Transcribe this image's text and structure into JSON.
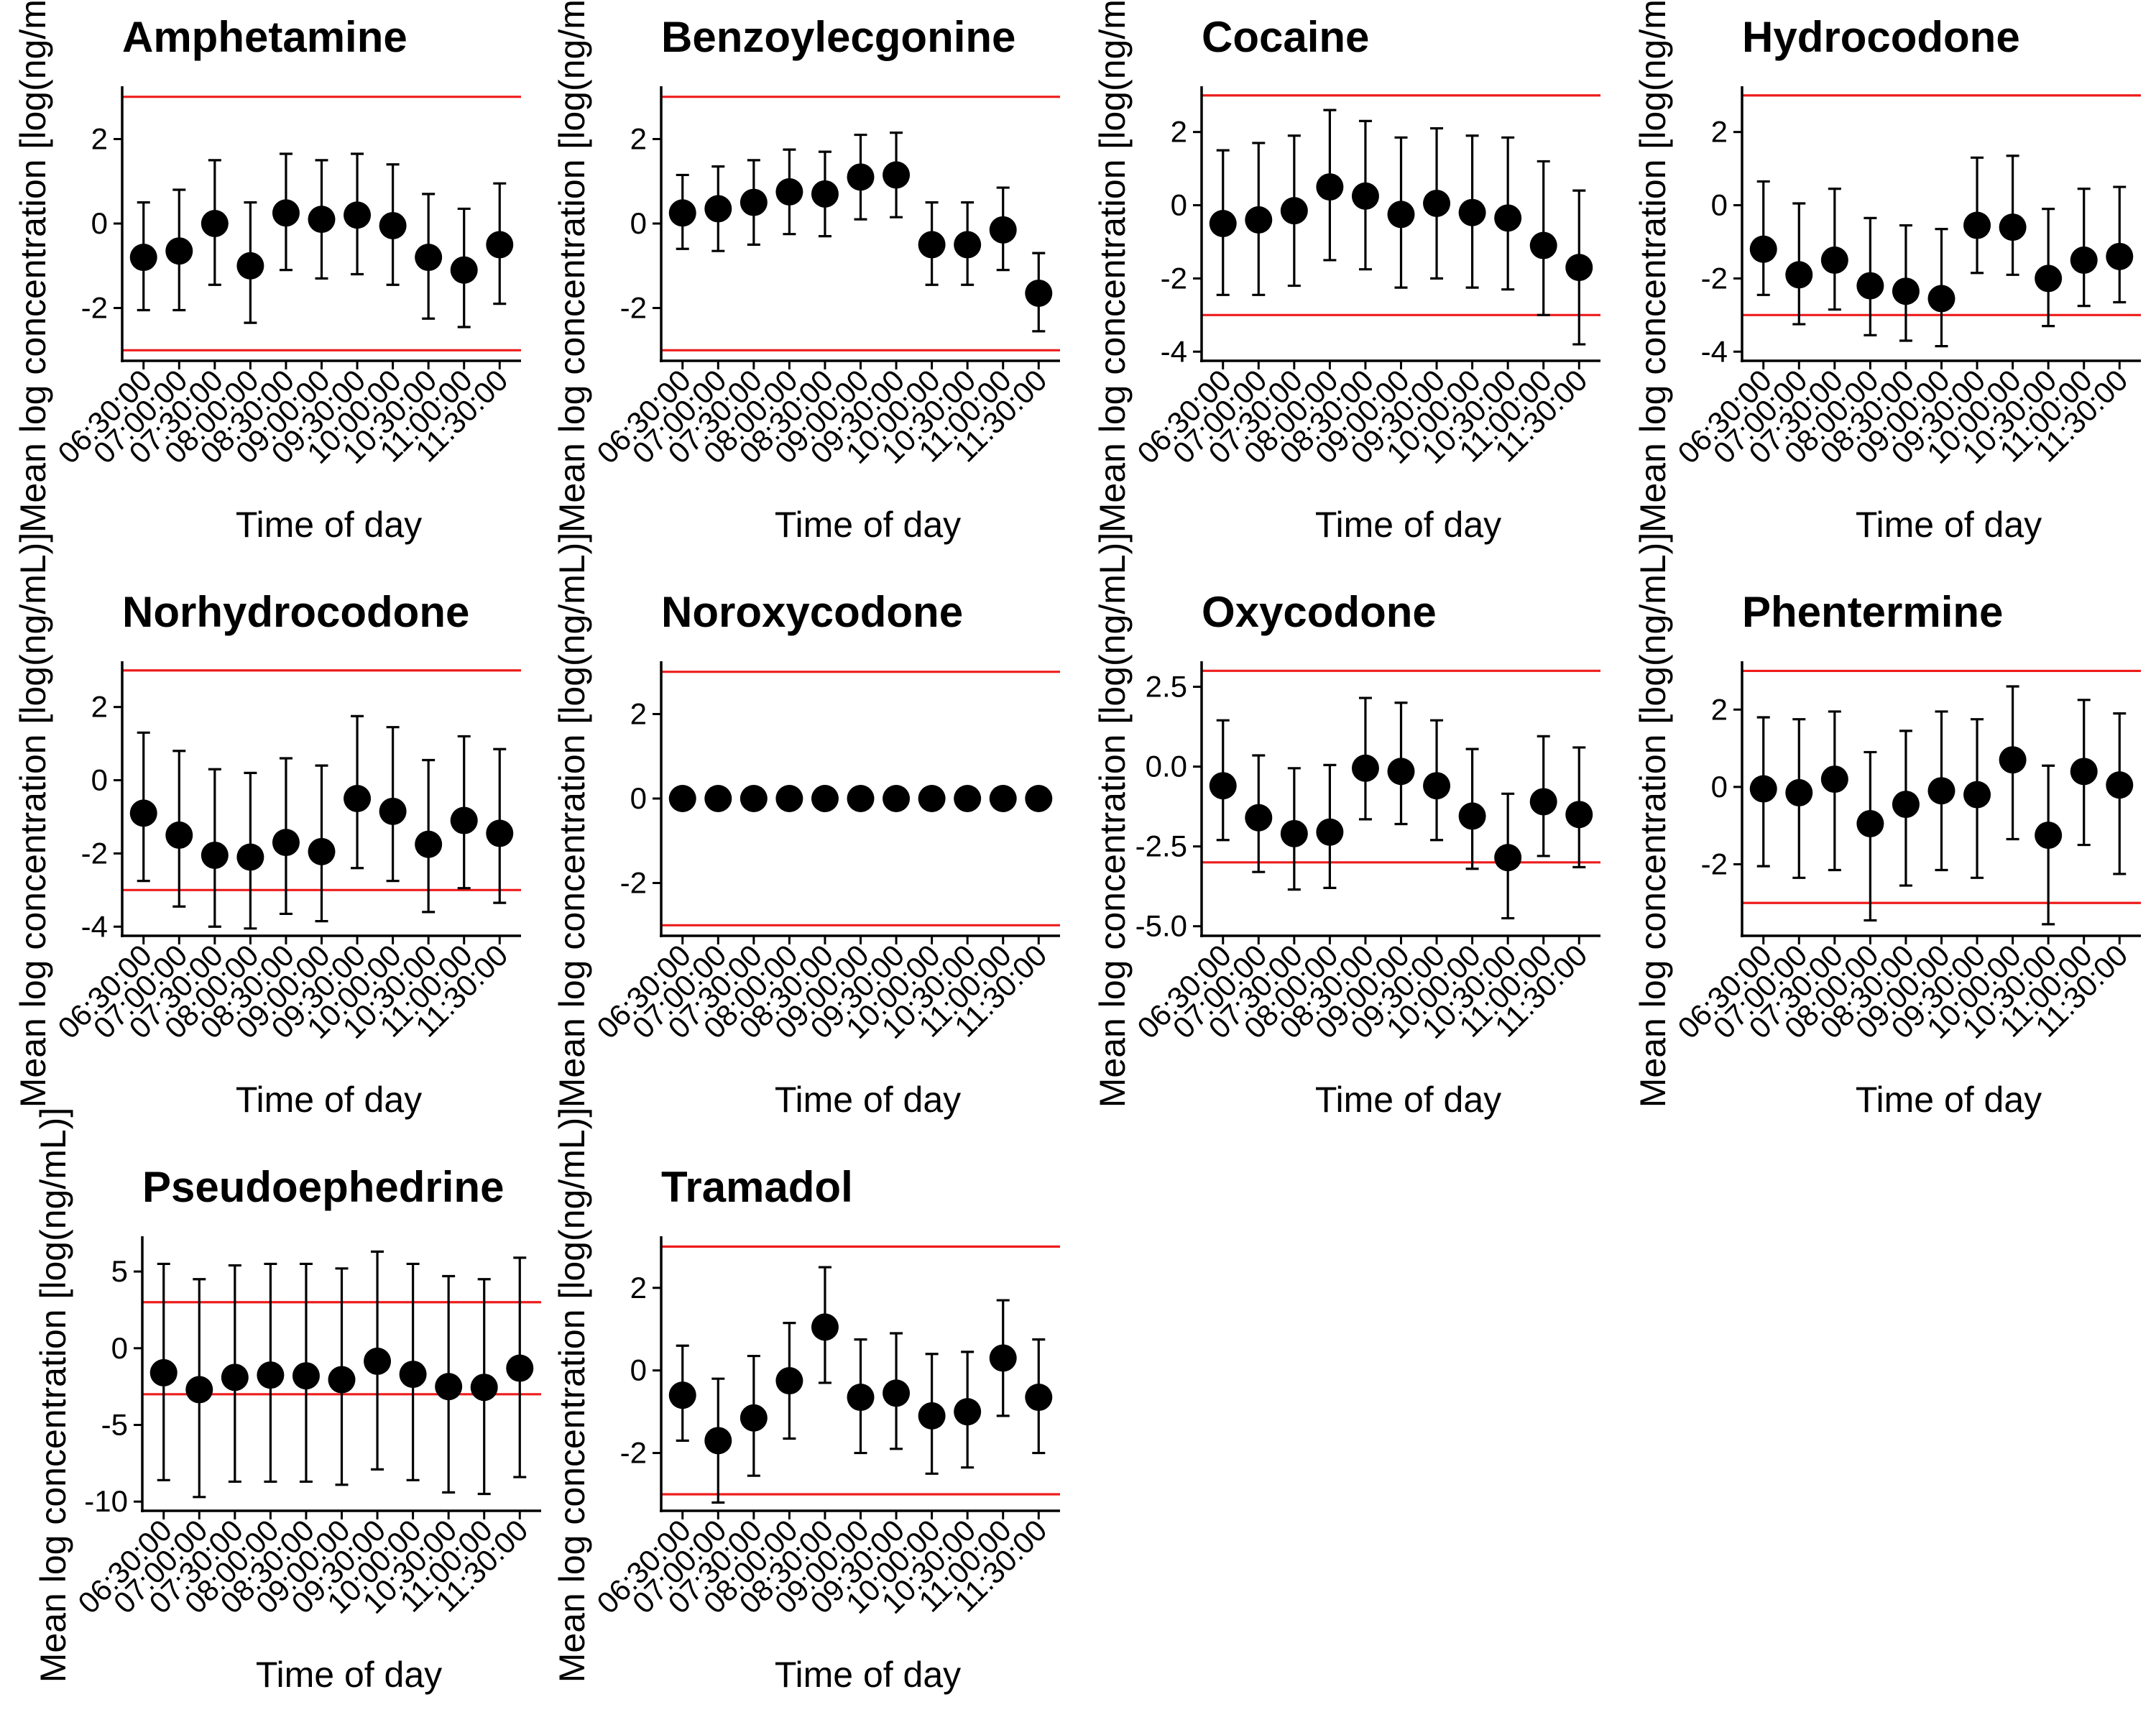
{
  "figure": {
    "reference_line_color": "#ee1c1c",
    "point_color": "#000000"
  },
  "chart_data": [
    {
      "type": "scatter",
      "title": "Amphetamine",
      "xlabel": "Time of day",
      "ylabel": "Mean log concentration [log(ng/mL)]",
      "categories": [
        "06:30:00",
        "07:00:00",
        "07:30:00",
        "08:00:00",
        "08:30:00",
        "09:00:00",
        "09:30:00",
        "10:00:00",
        "10:30:00",
        "11:00:00",
        "11:30:00"
      ],
      "values": [
        -0.8,
        -0.65,
        0.0,
        -1.0,
        0.25,
        0.1,
        0.2,
        -0.05,
        -0.8,
        -1.1,
        -0.5
      ],
      "error_low": [
        -2.05,
        -2.05,
        -1.45,
        -2.35,
        -1.1,
        -1.3,
        -1.2,
        -1.45,
        -2.25,
        -2.45,
        -1.9
      ],
      "error_high": [
        0.5,
        0.8,
        1.5,
        0.5,
        1.65,
        1.5,
        1.65,
        1.4,
        0.7,
        0.35,
        0.95
      ],
      "reference_lines": [
        3,
        -3
      ],
      "ylim": [
        -3.25,
        3.25
      ],
      "yticks": [
        -2,
        0,
        2
      ],
      "ytick_labels": [
        "-2",
        "0",
        "2"
      ]
    },
    {
      "type": "scatter",
      "title": "Benzoylecgonine",
      "xlabel": "Time of day",
      "ylabel": "Mean log concentration [log(ng/mL)]",
      "categories": [
        "06:30:00",
        "07:00:00",
        "07:30:00",
        "08:00:00",
        "08:30:00",
        "09:00:00",
        "09:30:00",
        "10:00:00",
        "10:30:00",
        "11:00:00",
        "11:30:00"
      ],
      "values": [
        0.25,
        0.35,
        0.5,
        0.75,
        0.7,
        1.1,
        1.15,
        -0.5,
        -0.5,
        -0.15,
        -1.65
      ],
      "error_low": [
        -0.6,
        -0.65,
        -0.5,
        -0.25,
        -0.3,
        0.1,
        0.15,
        -1.45,
        -1.45,
        -1.1,
        -2.55
      ],
      "error_high": [
        1.15,
        1.35,
        1.5,
        1.75,
        1.7,
        2.1,
        2.15,
        0.5,
        0.5,
        0.85,
        -0.7
      ],
      "reference_lines": [
        3,
        -3
      ],
      "ylim": [
        -3.25,
        3.25
      ],
      "yticks": [
        -2,
        0,
        2
      ],
      "ytick_labels": [
        "-2",
        "0",
        "2"
      ]
    },
    {
      "type": "scatter",
      "title": "Cocaine",
      "xlabel": "Time of day",
      "ylabel": "Mean log concentration [log(ng/mL)]",
      "categories": [
        "06:30:00",
        "07:00:00",
        "07:30:00",
        "08:00:00",
        "08:30:00",
        "09:00:00",
        "09:30:00",
        "10:00:00",
        "10:30:00",
        "11:00:00",
        "11:30:00"
      ],
      "values": [
        -0.5,
        -0.4,
        -0.15,
        0.5,
        0.25,
        -0.25,
        0.05,
        -0.2,
        -0.35,
        -1.1,
        -1.7
      ],
      "error_low": [
        -2.45,
        -2.45,
        -2.2,
        -1.5,
        -1.75,
        -2.25,
        -2.0,
        -2.25,
        -2.3,
        -3.0,
        -3.8
      ],
      "error_high": [
        1.5,
        1.7,
        1.9,
        2.6,
        2.3,
        1.85,
        2.1,
        1.9,
        1.85,
        1.2,
        0.4
      ],
      "reference_lines": [
        3,
        -3
      ],
      "ylim": [
        -4.25,
        3.25
      ],
      "yticks": [
        -4,
        -2,
        0,
        2
      ],
      "ytick_labels": [
        "-4",
        "-2",
        "0",
        "2"
      ]
    },
    {
      "type": "scatter",
      "title": "Hydrocodone",
      "xlabel": "Time of day",
      "ylabel": "Mean log concentration [log(ng/mL)]",
      "categories": [
        "06:30:00",
        "07:00:00",
        "07:30:00",
        "08:00:00",
        "08:30:00",
        "09:00:00",
        "09:30:00",
        "10:00:00",
        "10:30:00",
        "11:00:00",
        "11:30:00"
      ],
      "values": [
        -1.2,
        -1.9,
        -1.5,
        -2.2,
        -2.35,
        -2.55,
        -0.55,
        -0.6,
        -2.0,
        -1.5,
        -1.4
      ],
      "error_low": [
        -2.45,
        -3.25,
        -2.85,
        -3.55,
        -3.7,
        -3.85,
        -1.85,
        -1.9,
        -3.3,
        -2.75,
        -2.65
      ],
      "error_high": [
        0.65,
        0.05,
        0.45,
        -0.35,
        -0.55,
        -0.65,
        1.3,
        1.35,
        -0.1,
        0.45,
        0.5
      ],
      "reference_lines": [
        3,
        -3
      ],
      "ylim": [
        -4.25,
        3.25
      ],
      "yticks": [
        -4,
        -2,
        0,
        2
      ],
      "ytick_labels": [
        "-4",
        "-2",
        "0",
        "2"
      ]
    },
    {
      "type": "scatter",
      "title": "Norhydrocodone",
      "xlabel": "Time of day",
      "ylabel": "Mean log concentration [log(ng/mL)]",
      "categories": [
        "06:30:00",
        "07:00:00",
        "07:30:00",
        "08:00:00",
        "08:30:00",
        "09:00:00",
        "09:30:00",
        "10:00:00",
        "10:30:00",
        "11:00:00",
        "11:30:00"
      ],
      "values": [
        -0.9,
        -1.5,
        -2.05,
        -2.1,
        -1.7,
        -1.95,
        -0.5,
        -0.85,
        -1.75,
        -1.1,
        -1.45
      ],
      "error_low": [
        -2.75,
        -3.45,
        -4.0,
        -4.05,
        -3.65,
        -3.85,
        -2.4,
        -2.75,
        -3.6,
        -2.95,
        -3.35
      ],
      "error_high": [
        1.3,
        0.8,
        0.3,
        0.2,
        0.6,
        0.4,
        1.75,
        1.45,
        0.55,
        1.2,
        0.85
      ],
      "reference_lines": [
        3,
        -3
      ],
      "ylim": [
        -4.25,
        3.25
      ],
      "yticks": [
        -4,
        -2,
        0,
        2
      ],
      "ytick_labels": [
        "-4",
        "-2",
        "0",
        "2"
      ]
    },
    {
      "type": "scatter",
      "title": "Noroxycodone",
      "xlabel": "Time of day",
      "ylabel": "Mean log concentration [log(ng/mL)]",
      "categories": [
        "06:30:00",
        "07:00:00",
        "07:30:00",
        "08:00:00",
        "08:30:00",
        "09:00:00",
        "09:30:00",
        "10:00:00",
        "10:30:00",
        "11:00:00",
        "11:30:00"
      ],
      "values": [
        0,
        0,
        0,
        0,
        0,
        0,
        0,
        0,
        0,
        0,
        0
      ],
      "error_low": [
        0,
        0,
        0,
        0,
        0,
        0,
        0,
        0,
        0,
        0,
        0
      ],
      "error_high": [
        0,
        0,
        0,
        0,
        0,
        0,
        0,
        0,
        0,
        0,
        0
      ],
      "reference_lines": [
        3,
        -3
      ],
      "ylim": [
        -3.25,
        3.25
      ],
      "yticks": [
        -2,
        0,
        2
      ],
      "ytick_labels": [
        "-2",
        "0",
        "2"
      ]
    },
    {
      "type": "scatter",
      "title": "Oxycodone",
      "xlabel": "Time of day",
      "ylabel": "Mean log concentration [log(ng/mL)]",
      "categories": [
        "06:30:00",
        "07:00:00",
        "07:30:00",
        "08:00:00",
        "08:30:00",
        "09:00:00",
        "09:30:00",
        "10:00:00",
        "10:30:00",
        "11:00:00",
        "11:30:00"
      ],
      "values": [
        -0.6,
        -1.6,
        -2.1,
        -2.05,
        -0.05,
        -0.15,
        -0.6,
        -1.55,
        -2.85,
        -1.1,
        -1.5
      ],
      "error_low": [
        -2.3,
        -3.3,
        -3.85,
        -3.8,
        -1.65,
        -1.8,
        -2.3,
        -3.2,
        -4.75,
        -2.8,
        -3.15
      ],
      "error_high": [
        1.45,
        0.35,
        -0.05,
        0.05,
        2.15,
        2.0,
        1.45,
        0.55,
        -0.85,
        0.95,
        0.6
      ],
      "reference_lines": [
        3,
        -3
      ],
      "ylim": [
        -5.3,
        3.3
      ],
      "yticks": [
        -5,
        -2.5,
        0,
        2.5
      ],
      "ytick_labels": [
        "-5.0",
        "-2.5",
        "0.0",
        "2.5"
      ]
    },
    {
      "type": "scatter",
      "title": "Phentermine",
      "xlabel": "Time of day",
      "ylabel": "Mean log concentration [log(ng/mL)]",
      "categories": [
        "06:30:00",
        "07:00:00",
        "07:30:00",
        "08:00:00",
        "08:30:00",
        "09:00:00",
        "09:30:00",
        "10:00:00",
        "10:30:00",
        "11:00:00",
        "11:30:00"
      ],
      "values": [
        -0.05,
        -0.15,
        0.2,
        -0.95,
        -0.45,
        -0.1,
        -0.2,
        0.7,
        -1.25,
        0.4,
        0.05
      ],
      "error_low": [
        -2.05,
        -2.35,
        -2.15,
        -3.45,
        -2.55,
        -2.15,
        -2.35,
        -1.35,
        -3.55,
        -1.5,
        -2.25
      ],
      "error_high": [
        1.8,
        1.75,
        1.95,
        0.9,
        1.45,
        1.95,
        1.75,
        2.6,
        0.55,
        2.25,
        1.9
      ],
      "reference_lines": [
        3,
        -3
      ],
      "ylim": [
        -3.85,
        3.25
      ],
      "yticks": [
        -2,
        0,
        2
      ],
      "ytick_labels": [
        "-2",
        "0",
        "2"
      ]
    },
    {
      "type": "scatter",
      "title": "Pseudoephedrine",
      "xlabel": "Time of day",
      "ylabel": "Mean log concentration [log(ng/mL)]",
      "categories": [
        "06:30:00",
        "07:00:00",
        "07:30:00",
        "08:00:00",
        "08:30:00",
        "09:00:00",
        "09:30:00",
        "10:00:00",
        "10:30:00",
        "11:00:00",
        "11:30:00"
      ],
      "values": [
        -1.6,
        -2.7,
        -1.9,
        -1.75,
        -1.8,
        -2.05,
        -0.85,
        -1.7,
        -2.5,
        -2.55,
        -1.3
      ],
      "error_low": [
        -8.6,
        -9.7,
        -8.7,
        -8.7,
        -8.7,
        -8.9,
        -7.9,
        -8.6,
        -9.4,
        -9.5,
        -8.4
      ],
      "error_high": [
        5.5,
        4.5,
        5.4,
        5.5,
        5.5,
        5.2,
        6.3,
        5.5,
        4.7,
        4.5,
        5.9
      ],
      "reference_lines": [
        3,
        -3
      ],
      "ylim": [
        -10.6,
        7.3
      ],
      "yticks": [
        -10,
        -5,
        0,
        5
      ],
      "ytick_labels": [
        "-10",
        "-5",
        "0",
        "5"
      ]
    },
    {
      "type": "scatter",
      "title": "Tramadol",
      "xlabel": "Time of day",
      "ylabel": "Mean log concentration [log(ng/mL)]",
      "categories": [
        "06:30:00",
        "07:00:00",
        "07:30:00",
        "08:00:00",
        "08:30:00",
        "09:00:00",
        "09:30:00",
        "10:00:00",
        "10:30:00",
        "11:00:00",
        "11:30:00"
      ],
      "values": [
        -0.6,
        -1.7,
        -1.15,
        -0.25,
        1.05,
        -0.65,
        -0.55,
        -1.1,
        -1.0,
        0.3,
        -0.65
      ],
      "error_low": [
        -1.7,
        -3.2,
        -2.55,
        -1.65,
        -0.3,
        -2.0,
        -1.9,
        -2.5,
        -2.35,
        -1.1,
        -2.0
      ],
      "error_high": [
        0.6,
        -0.2,
        0.35,
        1.15,
        2.5,
        0.75,
        0.9,
        0.4,
        0.45,
        1.7,
        0.75
      ],
      "reference_lines": [
        3,
        -3
      ],
      "ylim": [
        -3.4,
        3.25
      ],
      "yticks": [
        -2,
        0,
        2
      ],
      "ytick_labels": [
        "-2",
        "0",
        "2"
      ]
    }
  ]
}
